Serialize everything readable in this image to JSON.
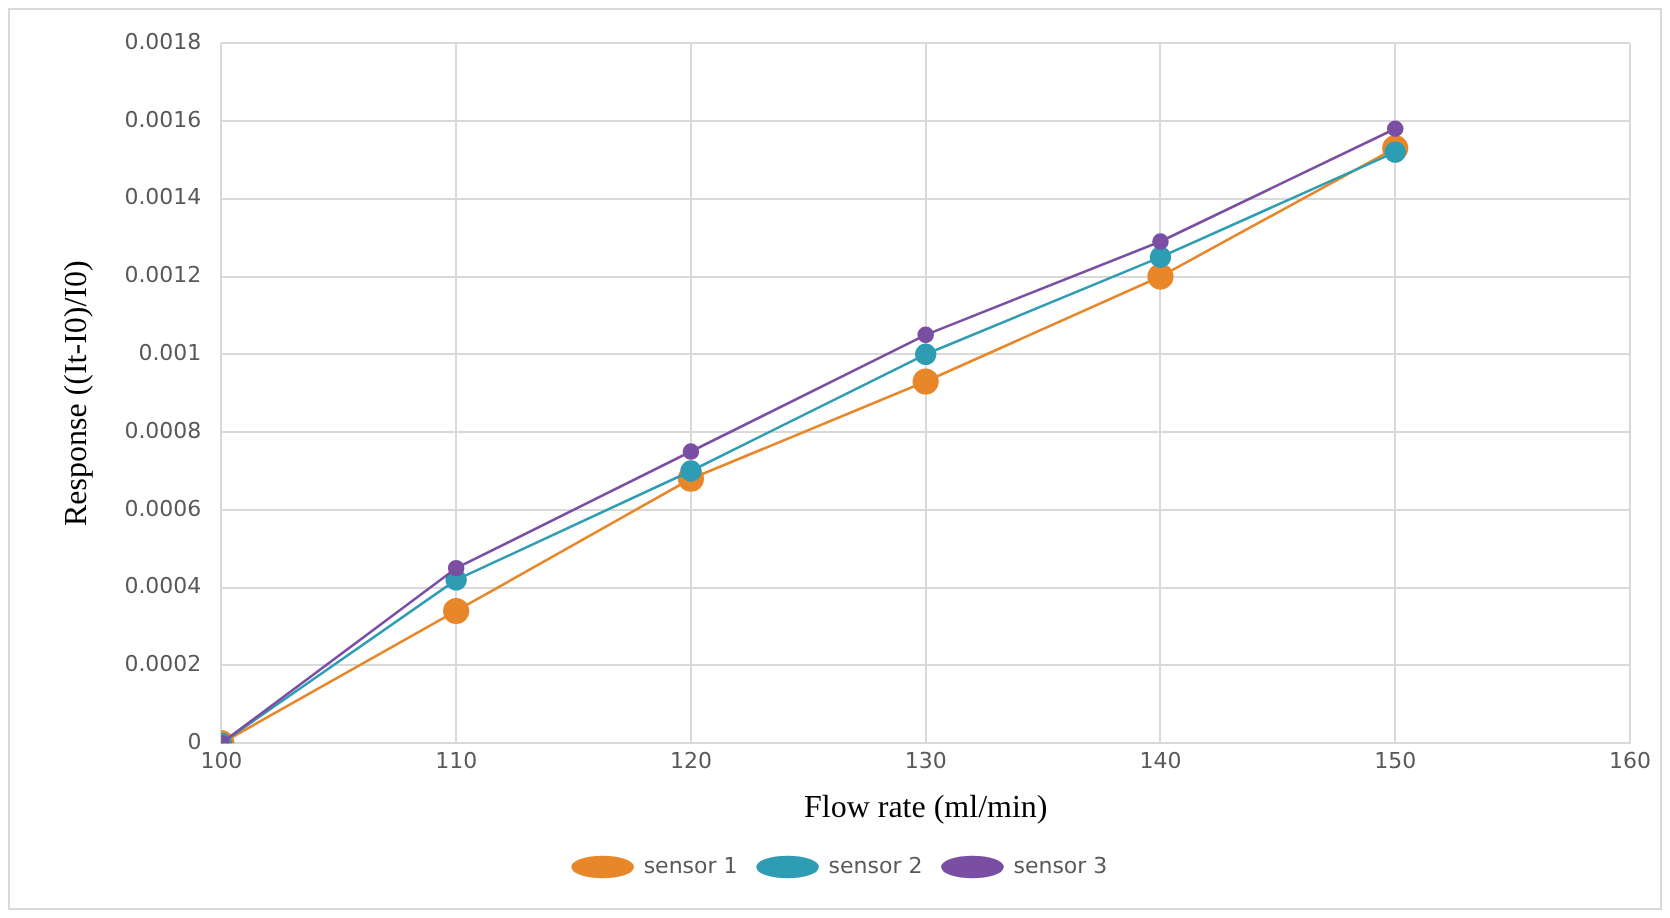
{
  "chart_data": {
    "type": "line",
    "xlabel": "Flow rate (ml/min)",
    "ylabel": "Response ((It-I0)/I0)",
    "x": [
      100,
      110,
      120,
      130,
      140,
      150
    ],
    "series": [
      {
        "name": "sensor 1",
        "color": "#e8862a",
        "values": [
          0,
          0.00034,
          0.00068,
          0.00093,
          0.0012,
          0.00153
        ]
      },
      {
        "name": "sensor 2",
        "color": "#2e9db3",
        "values": [
          0,
          0.00042,
          0.0007,
          0.001,
          0.00125,
          0.00152
        ]
      },
      {
        "name": "sensor 3",
        "color": "#7a4fa3",
        "values": [
          0,
          0.00045,
          0.00075,
          0.00105,
          0.00129,
          0.00158
        ]
      }
    ],
    "xlim": [
      100,
      160
    ],
    "xticks": [
      100,
      110,
      120,
      130,
      140,
      150,
      160
    ],
    "ylim": [
      0,
      0.0018
    ],
    "yticks": [
      0,
      0.0002,
      0.0004,
      0.0006,
      0.0008,
      0.001,
      0.0012,
      0.0014,
      0.0016,
      0.0018
    ],
    "grid": true,
    "legend": "bottom",
    "marker": "circle",
    "line_style": "solid"
  }
}
